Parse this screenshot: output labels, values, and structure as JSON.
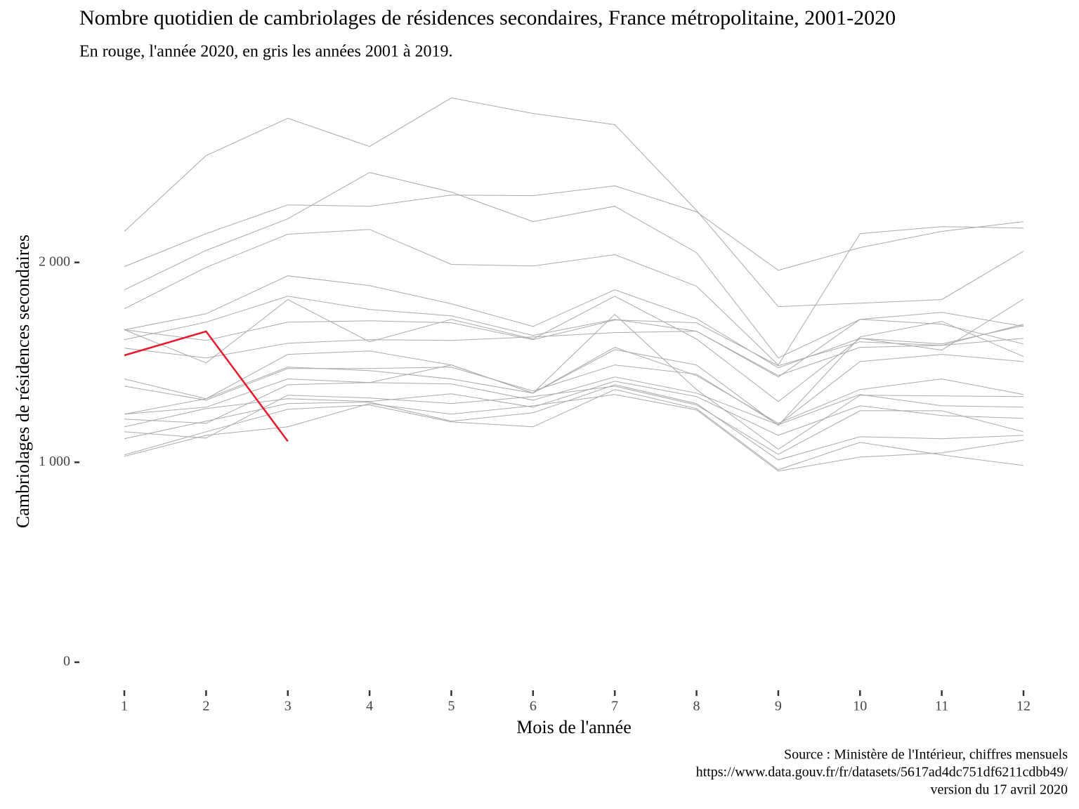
{
  "chart_data": {
    "type": "line",
    "title": "Nombre quotidien de cambriolages de résidences secondaires, France métropolitaine, 2001-2020",
    "subtitle": "En rouge, l'année 2020, en gris les années 2001 à 2019.",
    "xlabel": "Mois de l'année",
    "ylabel": "Cambriolages de résidences secondaires",
    "caption": [
      "Source : Ministère de l'Intérieur, chiffres mensuels",
      "https://www.data.gouv.fr/fr/datasets/5617ad4dc751df6211cdbb49/",
      "version du 17 avril 2020"
    ],
    "x": [
      1,
      2,
      3,
      4,
      5,
      6,
      7,
      8,
      9,
      10,
      11,
      12
    ],
    "xlim": [
      0.45,
      12.55
    ],
    "xticks": [
      1,
      2,
      3,
      4,
      5,
      6,
      7,
      8,
      9,
      10,
      11,
      12
    ],
    "ylim": [
      -130,
      2870
    ],
    "yticks": [
      0,
      {
        "value": 1000,
        "label": "1 000"
      },
      {
        "value": 2000,
        "label": "2 000"
      }
    ],
    "grid": false,
    "series": [
      {
        "color": "#aaaaaa",
        "values": [
          2155,
          2534,
          2721,
          2580,
          2823,
          2745,
          2689,
          2260,
          1779,
          1796,
          1814,
          2056
        ]
      },
      {
        "color": "#aaaaaa",
        "values": [
          1979,
          2144,
          2288,
          2281,
          2337,
          2334,
          2383,
          2253,
          1961,
          2074,
          2155,
          2204
        ]
      },
      {
        "color": "#aaaaaa",
        "values": [
          1863,
          2060,
          2218,
          2450,
          2352,
          2204,
          2281,
          2049,
          1522,
          1715,
          1750,
          1680
        ]
      },
      {
        "color": "#aaaaaa",
        "values": [
          1768,
          1975,
          2141,
          2165,
          1990,
          1982,
          2039,
          1881,
          1487,
          2144,
          2179,
          2172
        ]
      },
      {
        "color": "#aaaaaa",
        "values": [
          1663,
          1743,
          1933,
          1884,
          1793,
          1680,
          1863,
          1719,
          1473,
          1620,
          1592,
          1684
        ]
      },
      {
        "color": "#aaaaaa",
        "values": [
          1613,
          1701,
          1831,
          1765,
          1733,
          1635,
          1715,
          1656,
          1427,
          1715,
          1691,
          1592
        ]
      },
      {
        "color": "#aaaaaa",
        "values": [
          1663,
          1497,
          1814,
          1603,
          1715,
          1617,
          1831,
          1617,
          1304,
          1620,
          1561,
          1817
        ]
      },
      {
        "color": "#aaaaaa",
        "values": [
          1663,
          1610,
          1701,
          1708,
          1698,
          1613,
          1712,
          1698,
          1483,
          1603,
          1585,
          1691
        ]
      },
      {
        "color": "#aaaaaa",
        "values": [
          1571,
          1522,
          1596,
          1613,
          1610,
          1627,
          1649,
          1656,
          1434,
          1575,
          1585,
          1620
        ]
      },
      {
        "color": "#aaaaaa",
        "values": [
          1417,
          1318,
          1540,
          1557,
          1487,
          1346,
          1564,
          1487,
          1185,
          1627,
          1705,
          1529
        ]
      },
      {
        "color": "#aaaaaa",
        "values": [
          1381,
          1311,
          1469,
          1469,
          1476,
          1357,
          1487,
          1441,
          1188,
          1504,
          1540,
          1504
        ]
      },
      {
        "color": "#aaaaaa",
        "values": [
          1241,
          1276,
          1417,
          1399,
          1487,
          1346,
          1575,
          1434,
          1195,
          1364,
          1417,
          1339
        ]
      },
      {
        "color": "#aaaaaa",
        "values": [
          1241,
          1318,
          1476,
          1459,
          1417,
          1346,
          1740,
          1364,
          1065,
          1336,
          1332,
          1329
        ]
      },
      {
        "color": "#aaaaaa",
        "values": [
          1216,
          1195,
          1388,
          1399,
          1392,
          1311,
          1427,
          1346,
          1188,
          1339,
          1283,
          1276
        ]
      },
      {
        "color": "#aaaaaa",
        "values": [
          1178,
          1269,
          1318,
          1304,
          1343,
          1276,
          1406,
          1329,
          1135,
          1283,
          1234,
          1220
        ]
      },
      {
        "color": "#aaaaaa",
        "values": [
          1153,
          1121,
          1336,
          1322,
          1294,
          1329,
          1381,
          1287,
          1040,
          1258,
          1258,
          1153
        ]
      },
      {
        "color": "#aaaaaa",
        "values": [
          1118,
          1206,
          1294,
          1301,
          1206,
          1248,
          1388,
          1294,
          1012,
          1128,
          1118,
          1135
        ]
      },
      {
        "color": "#aaaaaa",
        "values": [
          1037,
          1153,
          1265,
          1287,
          1202,
          1178,
          1364,
          1269,
          963,
          1100,
          1037,
          984
        ]
      },
      {
        "color": "#aaaaaa",
        "values": [
          1030,
          1135,
          1178,
          1294,
          1241,
          1283,
          1339,
          1262,
          956,
          1026,
          1047,
          1111
        ]
      },
      {
        "color": "#e8192c",
        "values": [
          1535,
          1655,
          1105,
          null,
          null,
          null,
          null,
          null,
          null,
          null,
          null,
          null
        ]
      }
    ]
  }
}
